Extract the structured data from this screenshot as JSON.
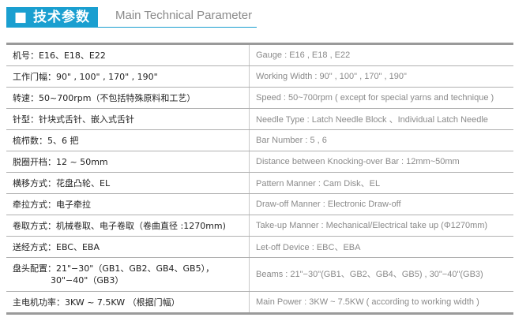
{
  "header": {
    "title": "■ 技术参数",
    "subtitle": "Main Technical Parameter",
    "accent": "#1a9fd0"
  },
  "rows": [
    {
      "cn": "机号：E16、E18、E22",
      "en": "Gauge : E16 , E18 , E22"
    },
    {
      "cn": "工作门幅：90\" , 100\" , 170\" , 190\"",
      "en": "Working Width : 90\" , 100\" , 170\" , 190\""
    },
    {
      "cn": "转速：50~700rpm（不包括特殊原料和工艺）",
      "en": "Speed : 50~700rpm ( except for special yarns and technique )"
    },
    {
      "cn": "针型：针块式舌针、嵌入式舌针",
      "en": "Needle Type : Latch Needle Block 、Individual Latch Needle"
    },
    {
      "cn": "梳栉数：5、6 把",
      "en": "Bar Number : 5 , 6"
    },
    {
      "cn": "脱圈开档：12 ~ 50mm",
      "en": "Distance between Knocking-over Bar : 12mm~50mm"
    },
    {
      "cn": "横移方式：花盘凸轮、EL",
      "en": "Pattern Manner : Cam Disk、EL"
    },
    {
      "cn": "牵拉方式：电子牵拉",
      "en": "Draw-off Manner : Electronic Draw-off"
    },
    {
      "cn": "卷取方式：机械卷取、电子卷取（卷曲直径 :1270mm)",
      "en": "Take-up Manner :  Mechanical/Electrical take up (Φ1270mm)"
    },
    {
      "cn": "送经方式：EBC、EBA",
      "en": "Let-off Device : EBC、EBA"
    },
    {
      "cn": "盘头配置：21\"−30\"（GB1、GB2、GB4、GB5），",
      "cn2": "30\"−40\"（GB3）",
      "en": "Beams : 21\"−30\"(GB1、GB2、GB4、GB5) , 30\"−40\"(GB3)"
    },
    {
      "cn": "主电机功率：3KW ~ 7.5KW （根据门幅）",
      "en": "Main Power : 3KW ~ 7.5KW  ( according to working width )"
    }
  ]
}
